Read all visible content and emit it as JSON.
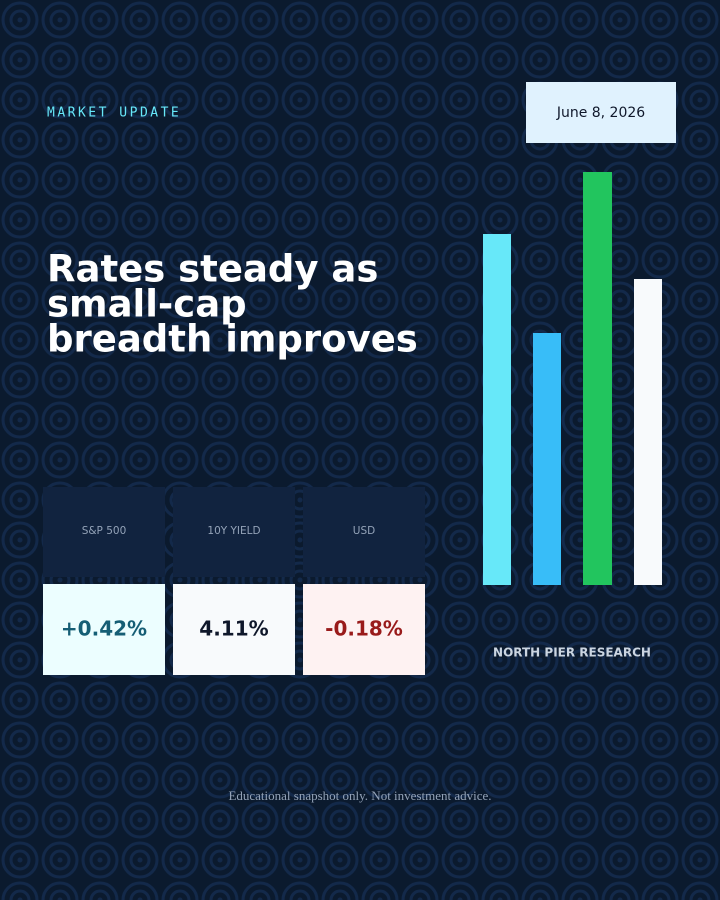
{
  "header": {
    "kicker": "MARKET UPDATE",
    "date": "June 8, 2026",
    "headline": [
      "Rates steady as",
      "small-cap",
      "breadth improves"
    ]
  },
  "stats": [
    {
      "label": "S&P 500",
      "value": "+0.42%"
    },
    {
      "label": "10Y YIELD",
      "value": "4.11%"
    },
    {
      "label": "USD",
      "value": "-0.18%"
    }
  ],
  "brand": "NORTH PIER RESEARCH",
  "footer": "Educational snapshot only. Not investment advice."
}
